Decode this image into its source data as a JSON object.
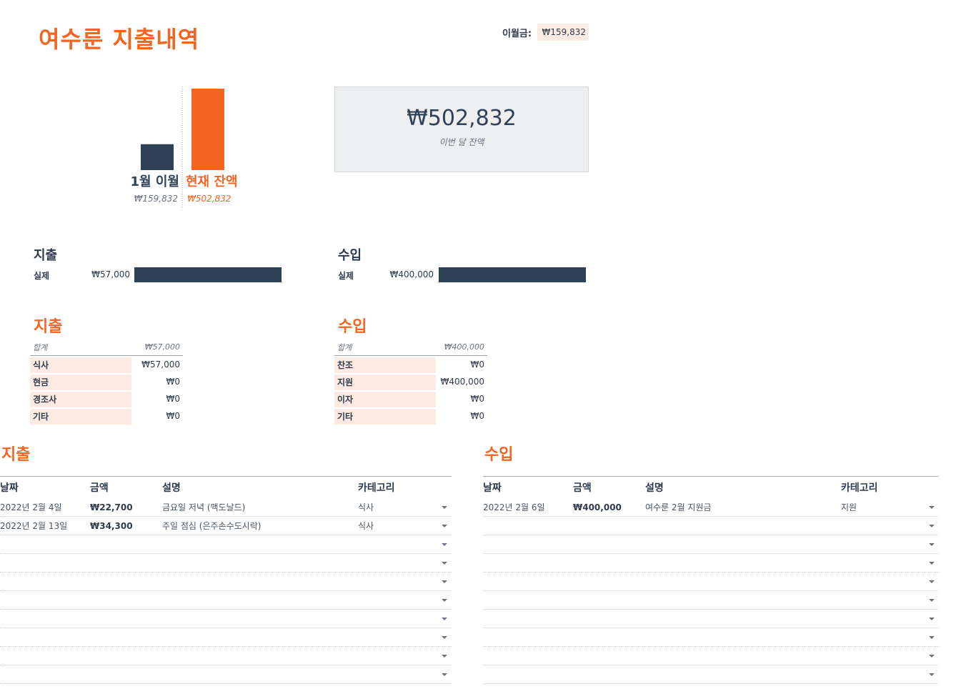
{
  "header": {
    "title": "여수룬 지출내역",
    "carryover_label": "이월금:",
    "carryover_value": "₩159,832"
  },
  "chart_data": {
    "type": "bar",
    "categories": [
      "1월 이월",
      "현재 잔액"
    ],
    "values": [
      159832,
      502832
    ],
    "value_labels": [
      "₩159,832",
      "₩502,832"
    ],
    "colors": [
      "#2f4156",
      "#f46524"
    ],
    "ylim": [
      0,
      502832
    ]
  },
  "balance": {
    "amount": "₩502,832",
    "caption": "이번 달 잔액"
  },
  "summary": {
    "expense": {
      "title": "지출",
      "row_label": "실제",
      "amount": "₩57,000",
      "fill": 1.0
    },
    "income": {
      "title": "수입",
      "row_label": "실제",
      "amount": "₩400,000",
      "fill": 1.0
    }
  },
  "expense_categories": {
    "title": "지출",
    "total_label": "합계",
    "total_value": "₩57,000",
    "rows": [
      {
        "name": "식사",
        "value": "₩57,000"
      },
      {
        "name": "현금",
        "value": "₩0"
      },
      {
        "name": "경조사",
        "value": "₩0"
      },
      {
        "name": "기타",
        "value": "₩0"
      }
    ]
  },
  "income_categories": {
    "title": "수입",
    "total_label": "합계",
    "total_value": "₩400,000",
    "rows": [
      {
        "name": "찬조",
        "value": "₩0"
      },
      {
        "name": "지원",
        "value": "₩400,000"
      },
      {
        "name": "이자",
        "value": "₩0"
      },
      {
        "name": "기타",
        "value": "₩0"
      }
    ]
  },
  "expense_table": {
    "title": "지출",
    "columns": [
      "날짜",
      "금액",
      "설명",
      "카테고리"
    ],
    "rows": [
      {
        "date": "2022년 2월 4일",
        "amount": "₩22,700",
        "desc": "금요일 저녁 (맥도날드)",
        "category": "식사"
      },
      {
        "date": "2022년 2월 13일",
        "amount": "₩34,300",
        "desc": "주일 점심 (은주손수도시락)",
        "category": "식사"
      },
      {
        "date": "",
        "amount": "",
        "desc": "",
        "category": ""
      },
      {
        "date": "",
        "amount": "",
        "desc": "",
        "category": ""
      },
      {
        "date": "",
        "amount": "",
        "desc": "",
        "category": ""
      },
      {
        "date": "",
        "amount": "",
        "desc": "",
        "category": ""
      },
      {
        "date": "",
        "amount": "",
        "desc": "",
        "category": ""
      },
      {
        "date": "",
        "amount": "",
        "desc": "",
        "category": ""
      },
      {
        "date": "",
        "amount": "",
        "desc": "",
        "category": ""
      },
      {
        "date": "",
        "amount": "",
        "desc": "",
        "category": ""
      }
    ]
  },
  "income_table": {
    "title": "수입",
    "columns": [
      "날짜",
      "금액",
      "설명",
      "카테고리"
    ],
    "rows": [
      {
        "date": "2022년 2월 6일",
        "amount": "₩400,000",
        "desc": "여수룬 2월 지원금",
        "category": "지원"
      },
      {
        "date": "",
        "amount": "",
        "desc": "",
        "category": ""
      },
      {
        "date": "",
        "amount": "",
        "desc": "",
        "category": ""
      },
      {
        "date": "",
        "amount": "",
        "desc": "",
        "category": ""
      },
      {
        "date": "",
        "amount": "",
        "desc": "",
        "category": ""
      },
      {
        "date": "",
        "amount": "",
        "desc": "",
        "category": ""
      },
      {
        "date": "",
        "amount": "",
        "desc": "",
        "category": ""
      },
      {
        "date": "",
        "amount": "",
        "desc": "",
        "category": ""
      },
      {
        "date": "",
        "amount": "",
        "desc": "",
        "category": ""
      },
      {
        "date": "",
        "amount": "",
        "desc": "",
        "category": ""
      }
    ]
  }
}
